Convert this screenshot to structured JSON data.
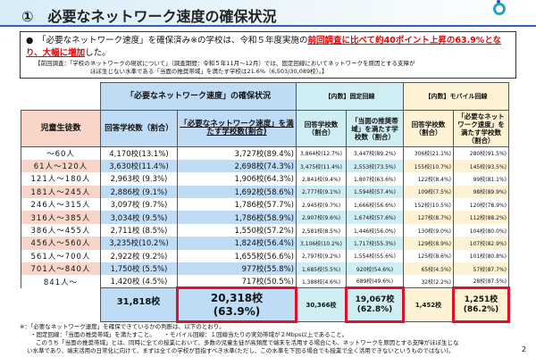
{
  "header": {
    "title": "①　必要なネットワーク速度の確保状況",
    "logo": "mext-logo"
  },
  "summary": {
    "bullet": "●",
    "text1": "「必要なネットワーク速度」を確保済み※の学校は、令和５年度実施の",
    "highlight": "前回調査に比べて約40ポイント上昇の63.9%となり、大幅に増加",
    "text2": "した。",
    "note1": "【前回調査：「学校のネットワークの現状について」（調査期間：令和５年11月～12月）では、固定回線においてネットワークを原因とする支障が",
    "note2": "ほぼ生じない水準である「当面の推奨帯域」を満たす学校は21.6%（6,503/30,089校）。】"
  },
  "table": {
    "group_headers": [
      "「必要なネットワーク速度」の確保状況",
      "【内数】固定回線",
      "【内数】モバイル回線"
    ],
    "columns": [
      "児童生徒数",
      "回答学校数（割合）",
      "「必要なネットワーク速度」を満たす学校数(割合)",
      "回答学校数（割合）",
      "「当面の推奨帯域」を満たす学校数（割合）",
      "回答学校数（割合）",
      "「必要なネットワーク速度」を満たす学校数（割合）"
    ],
    "rows": [
      [
        "～60人",
        "4,170校(13.1%)",
        "3,727校(89.4%)",
        "3,864校(12.7%)",
        "3,447校(89.2%)",
        "306校(21.1%)",
        "280校(91.5%)"
      ],
      [
        "61人～120人",
        "3,630校(11.4%)",
        "2,698校(74.3%)",
        "3,475校(11.4%)",
        "2,553校(73.5%)",
        "155校(10.7%)",
        "145校(93.5%)"
      ],
      [
        "121人～180人",
        "2,963校 (9.3%)",
        "1,906校(64.3%)",
        "2,841校(9.4%)",
        "1,807校(63.6%)",
        "122校(8.4%)",
        "99校(81.1%)"
      ],
      [
        "181人～245人",
        "2,886校 (9.1%)",
        "1,692校(58.6%)",
        "2,777校(9.1%)",
        "1,594校(57.4%)",
        "109校(7.5%)",
        "98校(89.9%)"
      ],
      [
        "246人～315人",
        "3,097校 (9.7%)",
        "1,786校(57.7%)",
        "2,945校(9.7%)",
        "1,666校(56.6%)",
        "152校(10.5%)",
        "120校(78.9%)"
      ],
      [
        "316人～385人",
        "3,034校 (9.5%)",
        "1,786校(58.9%)",
        "2,907校(9.6%)",
        "1,674校(57.6%)",
        "127校(8.7%)",
        "112校(88.2%)"
      ],
      [
        "386人～455人",
        "2,711校 (8.5%)",
        "1,550校(57.2%)",
        "2,581校(8.5%)",
        "1,446校(56.0%)",
        "130校(9.0%)",
        "104校(80.0%)"
      ],
      [
        "456人～560人",
        "3,235校(10.2%)",
        "1,824校(56.4%)",
        "3,106校(10.2%)",
        "1,717校(55.3%)",
        "129校(8.9%)",
        "107校(82.9%)"
      ],
      [
        "561人～700人",
        "2,922校 (9.2%)",
        "1,655校(56.6%)",
        "2,797校(9.2%)",
        "1,554校(55.6%)",
        "125校(8.6%)",
        "101校(80.8%)"
      ],
      [
        "701人～840人",
        "1,750校 (5.5%)",
        "977校(55.8%)",
        "1,685校(5.5%)",
        "920校(54.6%)",
        "65校(4.5%)",
        "57校(87.7%)"
      ],
      [
        "841人～",
        "1,420校 (4.5%)",
        "717校(50.5%)",
        "1,388校(4.6%)",
        "689校(49.6%)",
        "32校(2.2%)",
        "28校(87.5%)"
      ]
    ],
    "totals": {
      "all_count": "31,818校",
      "all_met": "20,318校",
      "all_met_pct": "(63.9%)",
      "fixed_count": "30,366校",
      "fixed_met": "19,067校",
      "fixed_met_pct": "(62.8%)",
      "mobile_count": "1,452校",
      "mobile_met": "1,251校",
      "mobile_met_pct": "(86.2%)"
    }
  },
  "footnote": {
    "l1": "※：「必要なネットワーク速度」を確保できているかの判断は、以下のとおり。",
    "l2": "・固定回線：「当面の推奨帯域」を満たすこと。　　・モバイル回線：１回線当たりの実効帯域が２Mbps以上であること。",
    "l3": "このうち「当面の推奨帯域」とは、同時に全ての授業において、多数の児童生徒が高頻度で端末を活用する場合にも、ネットワークを原因とする支障がほぼ生じな",
    "l4": "い水準であり、端末活用の日常化に向けて、まずは全ての学校が目指すべき水準(ただし、この水準を下回る場合でも授業で全く活用できないというものではない)。"
  },
  "page_number": "2"
}
